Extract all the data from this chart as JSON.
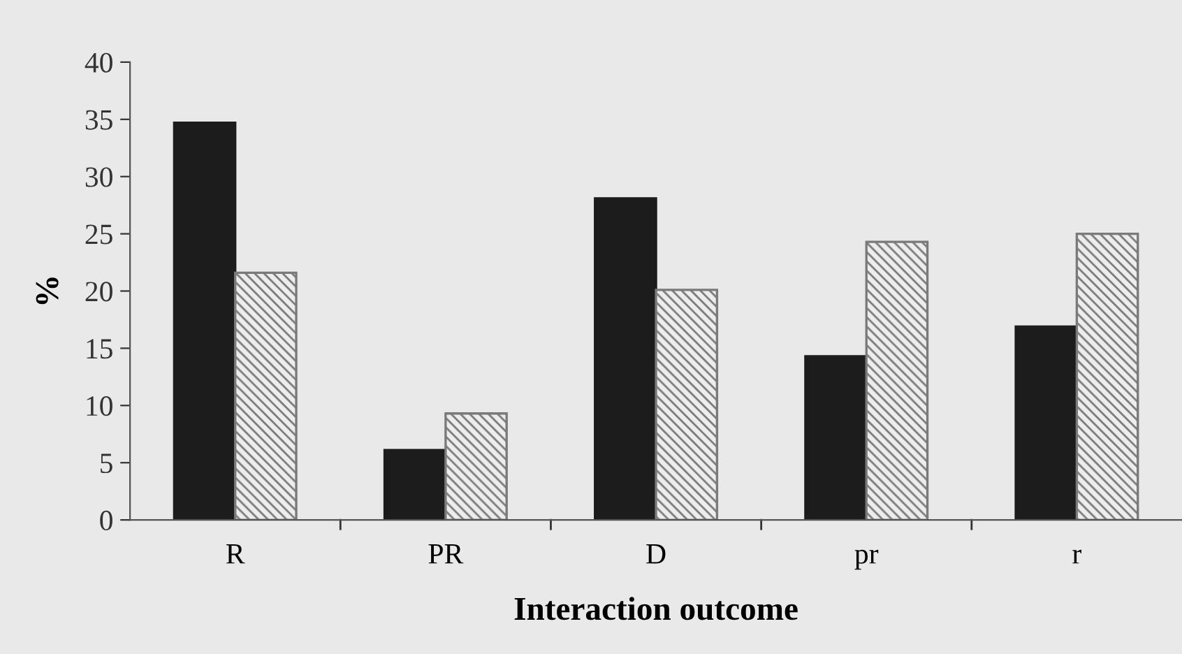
{
  "chart_data": {
    "type": "bar",
    "xlabel": "Interaction outcome",
    "ylabel": "%",
    "categories": [
      "R",
      "PR",
      "D",
      "pr",
      "r"
    ],
    "series": [
      {
        "color": "#1c1c1c",
        "values": [
          34.7,
          6.1,
          28.1,
          14.3,
          16.9
        ]
      },
      {
        "color": "#7a7a7a",
        "values": [
          21.6,
          9.3,
          20.1,
          24.3,
          25.0
        ]
      }
    ],
    "ylim": [
      0,
      40
    ],
    "yticks": [
      0,
      5,
      10,
      15,
      20,
      25,
      30,
      35,
      40
    ],
    "grid": false
  }
}
